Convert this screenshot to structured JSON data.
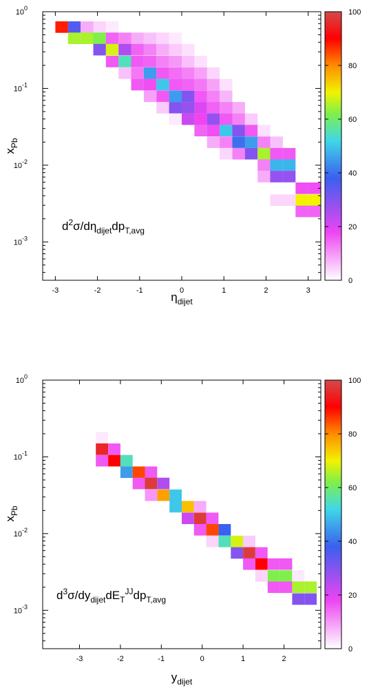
{
  "colorbar": {
    "min": 0,
    "max": 100,
    "ticks": [
      "0",
      "20",
      "40",
      "60",
      "80",
      "100"
    ]
  },
  "chart_data": [
    {
      "type": "heatmap",
      "xlabel_main": "η",
      "xlabel_sub": "dijet",
      "ylabel_main": "x",
      "ylabel_sub": "Pb",
      "annotation": {
        "p1": "d",
        "p1_sup": "2",
        "p2": "σ/dη",
        "p2_sub": "dijet",
        "p3": "dp",
        "p3_sub": "T,avg"
      },
      "x_ticks": [
        "-3",
        "-2",
        "-1",
        "0",
        "1",
        "2",
        "3"
      ],
      "x_tick_values": [
        -3,
        -2,
        -1,
        0,
        1,
        2,
        3
      ],
      "xlim": [
        -3.3,
        3.3
      ],
      "y_scale": "log",
      "ylim_log10": [
        -3.5,
        0
      ],
      "y_tick_labels": [
        {
          "base": "10",
          "exp": "0",
          "log10": 0
        },
        {
          "base": "10",
          "exp": "-1",
          "log10": -1
        },
        {
          "base": "10",
          "exp": "-2",
          "log10": -2
        },
        {
          "base": "10",
          "exp": "-3",
          "log10": -3
        }
      ],
      "cells": [
        {
          "x": -2.85,
          "y": 0.63,
          "v": 88
        },
        {
          "x": -2.55,
          "y": 0.63,
          "v": 35
        },
        {
          "x": -2.25,
          "y": 0.63,
          "v": 8
        },
        {
          "x": -1.95,
          "y": 0.63,
          "v": 4
        },
        {
          "x": -1.65,
          "y": 0.63,
          "v": 2
        },
        {
          "x": -2.55,
          "y": 0.45,
          "v": 65
        },
        {
          "x": -2.25,
          "y": 0.45,
          "v": 65
        },
        {
          "x": -1.95,
          "y": 0.45,
          "v": 62
        },
        {
          "x": -1.65,
          "y": 0.45,
          "v": 15
        },
        {
          "x": -1.35,
          "y": 0.45,
          "v": 12
        },
        {
          "x": -1.05,
          "y": 0.45,
          "v": 8
        },
        {
          "x": -0.75,
          "y": 0.45,
          "v": 6
        },
        {
          "x": -0.45,
          "y": 0.45,
          "v": 4
        },
        {
          "x": -0.15,
          "y": 0.45,
          "v": 2
        },
        {
          "x": -1.95,
          "y": 0.32,
          "v": 30
        },
        {
          "x": -1.65,
          "y": 0.32,
          "v": 68
        },
        {
          "x": -1.35,
          "y": 0.32,
          "v": 25
        },
        {
          "x": -1.05,
          "y": 0.32,
          "v": 15
        },
        {
          "x": -0.75,
          "y": 0.32,
          "v": 12
        },
        {
          "x": -0.45,
          "y": 0.32,
          "v": 8
        },
        {
          "x": -0.15,
          "y": 0.32,
          "v": 5
        },
        {
          "x": 0.15,
          "y": 0.32,
          "v": 3
        },
        {
          "x": -1.65,
          "y": 0.224,
          "v": 16
        },
        {
          "x": -1.35,
          "y": 0.224,
          "v": 55
        },
        {
          "x": -1.05,
          "y": 0.224,
          "v": 16
        },
        {
          "x": -0.75,
          "y": 0.224,
          "v": 15
        },
        {
          "x": -0.45,
          "y": 0.224,
          "v": 12
        },
        {
          "x": -0.15,
          "y": 0.224,
          "v": 10
        },
        {
          "x": 0.15,
          "y": 0.224,
          "v": 6
        },
        {
          "x": 0.45,
          "y": 0.224,
          "v": 3
        },
        {
          "x": -1.35,
          "y": 0.158,
          "v": 6
        },
        {
          "x": -1.05,
          "y": 0.158,
          "v": 13
        },
        {
          "x": -0.75,
          "y": 0.158,
          "v": 45
        },
        {
          "x": -0.45,
          "y": 0.158,
          "v": 16
        },
        {
          "x": -0.15,
          "y": 0.158,
          "v": 14
        },
        {
          "x": 0.15,
          "y": 0.158,
          "v": 12
        },
        {
          "x": 0.45,
          "y": 0.158,
          "v": 9
        },
        {
          "x": 0.75,
          "y": 0.158,
          "v": 4
        },
        {
          "x": -1.05,
          "y": 0.112,
          "v": 16
        },
        {
          "x": -0.75,
          "y": 0.112,
          "v": 17
        },
        {
          "x": -0.45,
          "y": 0.112,
          "v": 50
        },
        {
          "x": -0.15,
          "y": 0.112,
          "v": 16
        },
        {
          "x": 0.15,
          "y": 0.112,
          "v": 15
        },
        {
          "x": 0.45,
          "y": 0.112,
          "v": 13
        },
        {
          "x": 0.75,
          "y": 0.112,
          "v": 9
        },
        {
          "x": 1.05,
          "y": 0.112,
          "v": 3
        },
        {
          "x": -0.75,
          "y": 0.079,
          "v": 9
        },
        {
          "x": -0.45,
          "y": 0.079,
          "v": 16
        },
        {
          "x": -0.15,
          "y": 0.079,
          "v": 45
        },
        {
          "x": 0.15,
          "y": 0.079,
          "v": 30
        },
        {
          "x": 0.45,
          "y": 0.079,
          "v": 16
        },
        {
          "x": 0.75,
          "y": 0.079,
          "v": 12
        },
        {
          "x": 1.05,
          "y": 0.079,
          "v": 7
        },
        {
          "x": -0.45,
          "y": 0.056,
          "v": 5
        },
        {
          "x": -0.15,
          "y": 0.056,
          "v": 30
        },
        {
          "x": 0.15,
          "y": 0.056,
          "v": 28
        },
        {
          "x": 0.45,
          "y": 0.056,
          "v": 20
        },
        {
          "x": 0.75,
          "y": 0.056,
          "v": 15
        },
        {
          "x": 1.05,
          "y": 0.056,
          "v": 12
        },
        {
          "x": 1.35,
          "y": 0.056,
          "v": 8
        },
        {
          "x": -0.15,
          "y": 0.0398,
          "v": 2
        },
        {
          "x": 0.15,
          "y": 0.0398,
          "v": 22
        },
        {
          "x": 0.45,
          "y": 0.0398,
          "v": 18
        },
        {
          "x": 0.75,
          "y": 0.0398,
          "v": 28
        },
        {
          "x": 1.05,
          "y": 0.0398,
          "v": 16
        },
        {
          "x": 1.35,
          "y": 0.0398,
          "v": 12
        },
        {
          "x": 1.65,
          "y": 0.0398,
          "v": 5
        },
        {
          "x": 0.45,
          "y": 0.0282,
          "v": 15
        },
        {
          "x": 0.75,
          "y": 0.0282,
          "v": 17
        },
        {
          "x": 1.05,
          "y": 0.0282,
          "v": 50
        },
        {
          "x": 1.35,
          "y": 0.0282,
          "v": 30
        },
        {
          "x": 1.65,
          "y": 0.0282,
          "v": 16
        },
        {
          "x": 1.95,
          "y": 0.0282,
          "v": 3
        },
        {
          "x": 0.75,
          "y": 0.0199,
          "v": 8
        },
        {
          "x": 1.05,
          "y": 0.0199,
          "v": 12
        },
        {
          "x": 1.35,
          "y": 0.0199,
          "v": 40
        },
        {
          "x": 1.65,
          "y": 0.0199,
          "v": 45
        },
        {
          "x": 1.95,
          "y": 0.0199,
          "v": 12
        },
        {
          "x": 2.25,
          "y": 0.0199,
          "v": 6
        },
        {
          "x": 1.05,
          "y": 0.0141,
          "v": 4
        },
        {
          "x": 1.35,
          "y": 0.0141,
          "v": 12
        },
        {
          "x": 1.65,
          "y": 0.0141,
          "v": 30
        },
        {
          "x": 1.95,
          "y": 0.0141,
          "v": 65
        },
        {
          "x": 2.25,
          "y": 0.0141,
          "v": 16
        },
        {
          "x": 2.55,
          "y": 0.0141,
          "v": 16
        },
        {
          "x": 1.95,
          "y": 0.01,
          "v": 12
        },
        {
          "x": 2.25,
          "y": 0.01,
          "v": 48
        },
        {
          "x": 2.55,
          "y": 0.01,
          "v": 48
        },
        {
          "x": 1.95,
          "y": 0.0071,
          "v": 8
        },
        {
          "x": 2.25,
          "y": 0.0071,
          "v": 28
        },
        {
          "x": 2.55,
          "y": 0.0071,
          "v": 28
        },
        {
          "x": 2.85,
          "y": 0.005,
          "v": 17
        },
        {
          "x": 3.15,
          "y": 0.005,
          "v": 17
        },
        {
          "x": 2.25,
          "y": 0.0035,
          "v": 4
        },
        {
          "x": 2.55,
          "y": 0.0035,
          "v": 4
        },
        {
          "x": 2.85,
          "y": 0.0035,
          "v": 70
        },
        {
          "x": 3.15,
          "y": 0.0035,
          "v": 70
        },
        {
          "x": 2.85,
          "y": 0.0025,
          "v": 15
        },
        {
          "x": 3.15,
          "y": 0.0025,
          "v": 15
        }
      ]
    },
    {
      "type": "heatmap",
      "xlabel_main": "y",
      "xlabel_sub": "dijet",
      "ylabel_main": "x",
      "ylabel_sub": "Pb",
      "annotation": {
        "p1": "d",
        "p1_sup": "3",
        "p2": "σ/dy",
        "p2_sub": "dijet",
        "p3": "dE",
        "p3_sub": "T",
        "p3_sup": "JJ",
        "p4": "dp",
        "p4_sub": "T,avg"
      },
      "x_ticks": [
        "-3",
        "-2",
        "-1",
        "0",
        "1",
        "2"
      ],
      "x_tick_values": [
        -3,
        -2,
        -1,
        0,
        1,
        2
      ],
      "xlim": [
        -3.9,
        2.9
      ],
      "y_scale": "log",
      "ylim_log10": [
        -3.5,
        0
      ],
      "y_tick_labels": [
        {
          "base": "10",
          "exp": "0",
          "log10": 0
        },
        {
          "base": "10",
          "exp": "-1",
          "log10": -1
        },
        {
          "base": "10",
          "exp": "-2",
          "log10": -2
        },
        {
          "base": "10",
          "exp": "-3",
          "log10": -3
        }
      ],
      "cells": [
        {
          "x": -2.45,
          "y": 0.178,
          "v": 2
        },
        {
          "x": -2.45,
          "y": 0.126,
          "v": 95
        },
        {
          "x": -2.15,
          "y": 0.126,
          "v": 16
        },
        {
          "x": -2.45,
          "y": 0.089,
          "v": 16
        },
        {
          "x": -2.15,
          "y": 0.089,
          "v": 90
        },
        {
          "x": -1.85,
          "y": 0.089,
          "v": 55
        },
        {
          "x": -1.85,
          "y": 0.063,
          "v": 45
        },
        {
          "x": -1.55,
          "y": 0.063,
          "v": 85
        },
        {
          "x": -1.25,
          "y": 0.063,
          "v": 16
        },
        {
          "x": -1.55,
          "y": 0.045,
          "v": 16
        },
        {
          "x": -1.25,
          "y": 0.045,
          "v": 98
        },
        {
          "x": -0.95,
          "y": 0.045,
          "v": 25
        },
        {
          "x": -1.25,
          "y": 0.0316,
          "v": 10
        },
        {
          "x": -0.95,
          "y": 0.0316,
          "v": 78
        },
        {
          "x": -0.65,
          "y": 0.0316,
          "v": 50
        },
        {
          "x": -0.65,
          "y": 0.0224,
          "v": 50
        },
        {
          "x": -0.35,
          "y": 0.0224,
          "v": 75
        },
        {
          "x": -0.05,
          "y": 0.0224,
          "v": 8
        },
        {
          "x": -0.35,
          "y": 0.0158,
          "v": 22
        },
        {
          "x": -0.05,
          "y": 0.0158,
          "v": 98
        },
        {
          "x": 0.25,
          "y": 0.0158,
          "v": 16
        },
        {
          "x": -0.05,
          "y": 0.0112,
          "v": 16
        },
        {
          "x": 0.25,
          "y": 0.0112,
          "v": 85
        },
        {
          "x": 0.55,
          "y": 0.0112,
          "v": 38
        },
        {
          "x": 0.25,
          "y": 0.0079,
          "v": 4
        },
        {
          "x": 0.55,
          "y": 0.0079,
          "v": 55
        },
        {
          "x": 0.85,
          "y": 0.0079,
          "v": 68
        },
        {
          "x": 1.15,
          "y": 0.0079,
          "v": 5
        },
        {
          "x": 0.85,
          "y": 0.0056,
          "v": 30
        },
        {
          "x": 1.15,
          "y": 0.0056,
          "v": 98
        },
        {
          "x": 1.45,
          "y": 0.0056,
          "v": 16
        },
        {
          "x": 1.15,
          "y": 0.004,
          "v": 16
        },
        {
          "x": 1.45,
          "y": 0.004,
          "v": 90
        },
        {
          "x": 1.75,
          "y": 0.004,
          "v": 16
        },
        {
          "x": 2.05,
          "y": 0.004,
          "v": 16
        },
        {
          "x": 1.45,
          "y": 0.0028,
          "v": 4
        },
        {
          "x": 1.75,
          "y": 0.0028,
          "v": 62
        },
        {
          "x": 2.05,
          "y": 0.0028,
          "v": 62
        },
        {
          "x": 2.35,
          "y": 0.0028,
          "v": 2
        },
        {
          "x": 1.75,
          "y": 0.002,
          "v": 16
        },
        {
          "x": 2.05,
          "y": 0.002,
          "v": 16
        },
        {
          "x": 2.35,
          "y": 0.002,
          "v": 65
        },
        {
          "x": 2.65,
          "y": 0.002,
          "v": 65
        },
        {
          "x": 2.35,
          "y": 0.0014,
          "v": 30
        },
        {
          "x": 2.65,
          "y": 0.0014,
          "v": 30
        }
      ]
    }
  ]
}
